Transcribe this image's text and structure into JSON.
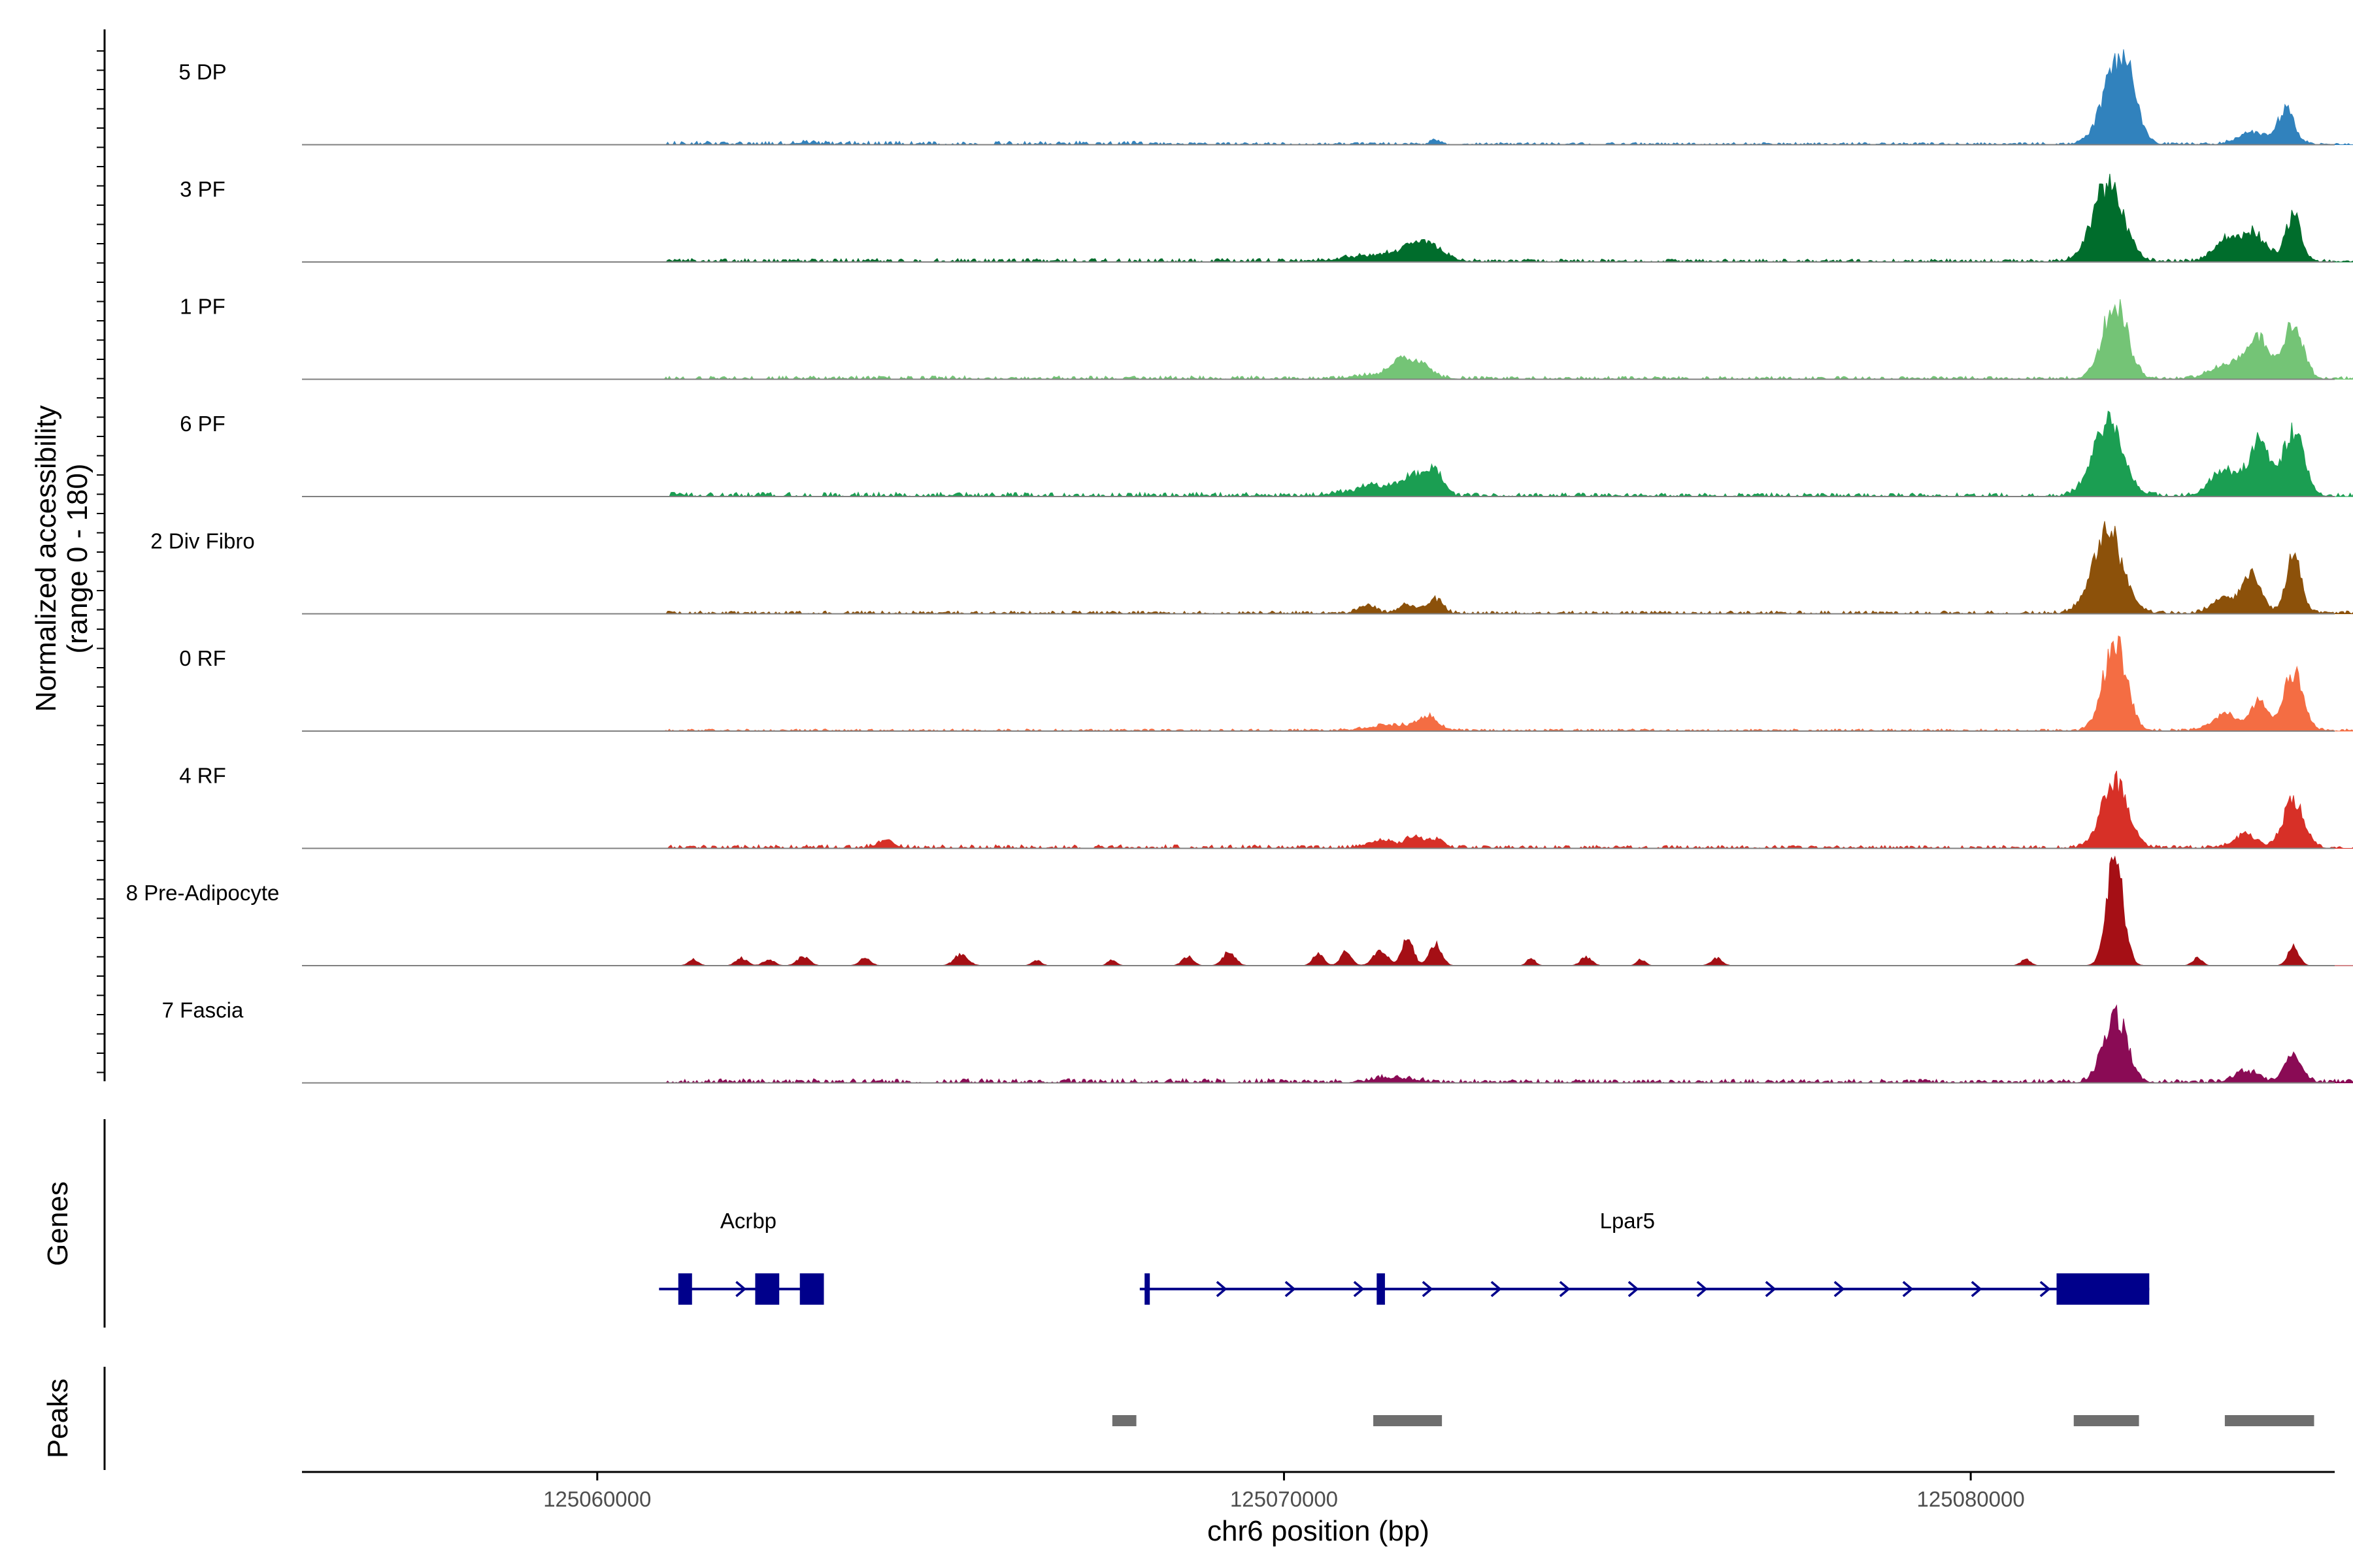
{
  "chart_data": {
    "type": "area",
    "title": "",
    "xlabel": "chr6 position (bp)",
    "ylabel_line1": "Normalized accessibility",
    "ylabel_line2": "(range 0 - 180)",
    "y_range": [
      0,
      180
    ],
    "xlim": [
      125055700,
      125085300
    ],
    "x_ticks": [
      {
        "value": 125060000,
        "label": "125060000"
      },
      {
        "value": 125070000,
        "label": "125070000"
      },
      {
        "value": 125080000,
        "label": "125080000"
      }
    ],
    "tracks": [
      {
        "name": "5 DP",
        "color": "#3182bd",
        "noise": [
          [
            125061000,
            125068000,
            3,
            5
          ],
          [
            125068000,
            125082000,
            2.5,
            3
          ],
          [
            125082000,
            125087000,
            2.5,
            3
          ]
        ],
        "peaks": [
          [
            125063000,
            120,
            3
          ],
          [
            125072200,
            60,
            8
          ],
          [
            125082100,
            200,
            110
          ],
          [
            125082300,
            150,
            55
          ],
          [
            125084100,
            200,
            20
          ],
          [
            125084600,
            120,
            55
          ]
        ]
      },
      {
        "name": "3 PF",
        "color": "#006d2c",
        "noise": [
          [
            125061000,
            125070000,
            2,
            5
          ],
          [
            125070000,
            125082000,
            2.5,
            4
          ],
          [
            125082000,
            125087000,
            2.5,
            4
          ]
        ],
        "peaks": [
          [
            125071500,
            500,
            12
          ],
          [
            125071900,
            150,
            22
          ],
          [
            125072200,
            160,
            18
          ],
          [
            125082000,
            220,
            125
          ],
          [
            125083700,
            170,
            30
          ],
          [
            125084100,
            200,
            45
          ],
          [
            125084700,
            110,
            75
          ]
        ]
      },
      {
        "name": "1 PF",
        "color": "#74c476",
        "noise": [
          [
            125061000,
            125070000,
            2,
            5
          ],
          [
            125070000,
            125082000,
            2.5,
            4
          ],
          [
            125082000,
            125087000,
            2.5,
            4
          ]
        ],
        "peaks": [
          [
            125071600,
            400,
            10
          ],
          [
            125071700,
            120,
            22
          ],
          [
            125072000,
            130,
            20
          ],
          [
            125082100,
            180,
            120
          ],
          [
            125083800,
            260,
            25
          ],
          [
            125084200,
            150,
            60
          ],
          [
            125084700,
            140,
            85
          ]
        ]
      },
      {
        "name": "6 PF",
        "color": "#1b9e52",
        "noise": [
          [
            125061000,
            125070000,
            3,
            6
          ],
          [
            125070000,
            125082000,
            3,
            5
          ],
          [
            125082000,
            125087000,
            3,
            5
          ]
        ],
        "peaks": [
          [
            125071400,
            400,
            16
          ],
          [
            125071900,
            150,
            28
          ],
          [
            125072200,
            110,
            40
          ],
          [
            125082000,
            220,
            115
          ],
          [
            125083700,
            200,
            40
          ],
          [
            125084200,
            150,
            85
          ],
          [
            125084700,
            150,
            105
          ]
        ]
      },
      {
        "name": "2 Div Fibro",
        "color": "#8c510a",
        "noise": [
          [
            125061000,
            125070000,
            2,
            4
          ],
          [
            125070000,
            125082000,
            2.5,
            4
          ],
          [
            125082000,
            125087000,
            2.5,
            4
          ]
        ],
        "peaks": [
          [
            125071200,
            120,
            12
          ],
          [
            125071800,
            130,
            14
          ],
          [
            125072200,
            110,
            22
          ],
          [
            125082000,
            220,
            130
          ],
          [
            125083700,
            180,
            25
          ],
          [
            125084100,
            130,
            60
          ],
          [
            125084700,
            110,
            90
          ]
        ]
      },
      {
        "name": "0 RF",
        "color": "#f46d43",
        "noise": [
          [
            125061000,
            125070000,
            1.5,
            3
          ],
          [
            125070000,
            125082000,
            2,
            3
          ],
          [
            125082000,
            125087000,
            2,
            3
          ]
        ],
        "peaks": [
          [
            125071600,
            350,
            9
          ],
          [
            125072100,
            140,
            20
          ],
          [
            125082100,
            170,
            140
          ],
          [
            125083700,
            200,
            25
          ],
          [
            125084200,
            130,
            45
          ],
          [
            125084700,
            140,
            95
          ]
        ]
      },
      {
        "name": "4 RF",
        "color": "#d73027",
        "noise": [
          [
            125061000,
            125070000,
            2.5,
            5
          ],
          [
            125070000,
            125082000,
            2.5,
            4
          ],
          [
            125082000,
            125087000,
            2.5,
            4
          ]
        ],
        "peaks": [
          [
            125064200,
            120,
            12
          ],
          [
            125071400,
            200,
            12
          ],
          [
            125071900,
            120,
            18
          ],
          [
            125072200,
            120,
            14
          ],
          [
            125082100,
            190,
            110
          ],
          [
            125084000,
            160,
            22
          ],
          [
            125084700,
            150,
            75
          ]
        ]
      },
      {
        "name": "8 Pre-Adipocyte",
        "color": "#a50f15",
        "noise": [],
        "peaks": [
          [
            125061400,
            70,
            10
          ],
          [
            125062100,
            80,
            12
          ],
          [
            125062500,
            80,
            10
          ],
          [
            125063000,
            90,
            14
          ],
          [
            125063900,
            80,
            12
          ],
          [
            125065300,
            100,
            18
          ],
          [
            125066400,
            70,
            8
          ],
          [
            125067500,
            60,
            10
          ],
          [
            125068600,
            80,
            14
          ],
          [
            125069200,
            90,
            22
          ],
          [
            125070500,
            80,
            18
          ],
          [
            125070900,
            80,
            22
          ],
          [
            125071400,
            100,
            26
          ],
          [
            125071800,
            80,
            48
          ],
          [
            125072200,
            90,
            36
          ],
          [
            125073600,
            60,
            12
          ],
          [
            125074400,
            80,
            14
          ],
          [
            125075200,
            60,
            10
          ],
          [
            125076300,
            80,
            12
          ],
          [
            125080800,
            70,
            10
          ],
          [
            125082100,
            120,
            170
          ],
          [
            125083300,
            70,
            12
          ],
          [
            125084700,
            80,
            30
          ]
        ]
      },
      {
        "name": "7 Fascia",
        "color": "#8a0b55",
        "noise": [
          [
            125061000,
            125070000,
            3,
            6
          ],
          [
            125070000,
            125082000,
            3,
            5
          ],
          [
            125082000,
            125087000,
            3,
            5
          ]
        ],
        "peaks": [
          [
            125071600,
            300,
            8
          ],
          [
            125082100,
            170,
            110
          ],
          [
            125084000,
            170,
            18
          ],
          [
            125084700,
            130,
            42
          ]
        ]
      }
    ],
    "genes": [
      {
        "name": "Acrbp",
        "start": 125060900,
        "end": 125063300,
        "strand": "+",
        "label_x": 125062200,
        "exons": [
          [
            125061180,
            125061380
          ],
          [
            125062300,
            125062650
          ],
          [
            125062950,
            125063300
          ]
        ]
      },
      {
        "name": "Lpar5",
        "start": 125067900,
        "end": 125082600,
        "strand": "+",
        "label_x": 125075000,
        "exons": [
          [
            125067970,
            125068030
          ],
          [
            125071350,
            125071470
          ],
          [
            125081250,
            125082600
          ]
        ]
      }
    ],
    "peaks_track": [
      [
        125067500,
        125067850
      ],
      [
        125071300,
        125072300
      ],
      [
        125081500,
        125082450
      ],
      [
        125083700,
        125085000
      ]
    ],
    "gene_color": "#00008b",
    "peak_color": "#6e6e6e"
  },
  "panels": {
    "genes_label": "Genes",
    "peaks_label": "Peaks"
  }
}
